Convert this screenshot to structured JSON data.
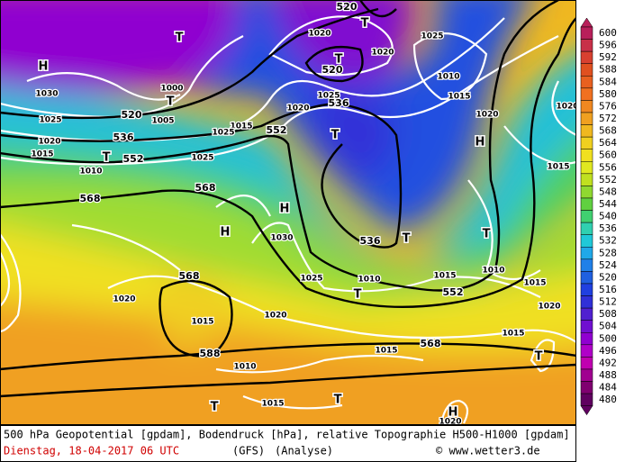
{
  "map": {
    "geopotential_labels": [
      520,
      536,
      552,
      568,
      568,
      552,
      536,
      520,
      520,
      536,
      552,
      568,
      568,
      588
    ],
    "pressure_labels": [
      1030,
      1025,
      1020,
      1015,
      1010,
      1005,
      1000,
      1020,
      1020,
      1025,
      1010,
      1015,
      1020,
      1025,
      1020,
      1015,
      1025,
      1025,
      1030,
      1025,
      1010,
      1015,
      1010,
      1015,
      1020,
      1020,
      1015,
      1015,
      1015,
      1010,
      1015,
      1020,
      1015,
      1020,
      1020
    ],
    "centers": [
      "H",
      "T",
      "T",
      "T",
      "T",
      "T",
      "T",
      "H",
      "T",
      "H",
      "H",
      "T",
      "T",
      "T",
      "T",
      "T",
      "H"
    ]
  },
  "colorbar": {
    "levels": [
      600,
      596,
      592,
      588,
      584,
      580,
      576,
      572,
      568,
      564,
      560,
      556,
      552,
      548,
      544,
      540,
      536,
      532,
      528,
      524,
      520,
      516,
      512,
      508,
      504,
      500,
      496,
      492,
      488,
      484,
      480
    ],
    "colors": [
      "#b8205a",
      "#c83048",
      "#d84030",
      "#e05020",
      "#e86020",
      "#f07020",
      "#f08820",
      "#f0a020",
      "#f0b820",
      "#f0d020",
      "#f0e020",
      "#e0e820",
      "#c0e020",
      "#90d830",
      "#60d040",
      "#40d070",
      "#30d0b0",
      "#20c8d8",
      "#20a8e8",
      "#2080e8",
      "#2060e0",
      "#2040e0",
      "#3030d8",
      "#5020d0",
      "#7010d0",
      "#9000d0",
      "#b000c8",
      "#c000b0",
      "#a00090",
      "#800070",
      "#600060"
    ]
  },
  "footer": {
    "description": "500 hPa Geopotential [gpdam], Bodendruck [hPa], relative Topographie H500-H1000 [gpdam]",
    "date": "Dienstag, 18-04-2017  06 UTC",
    "model": "(GFS)",
    "run": "(Analyse)",
    "credit": "© www.wetter3.de"
  }
}
